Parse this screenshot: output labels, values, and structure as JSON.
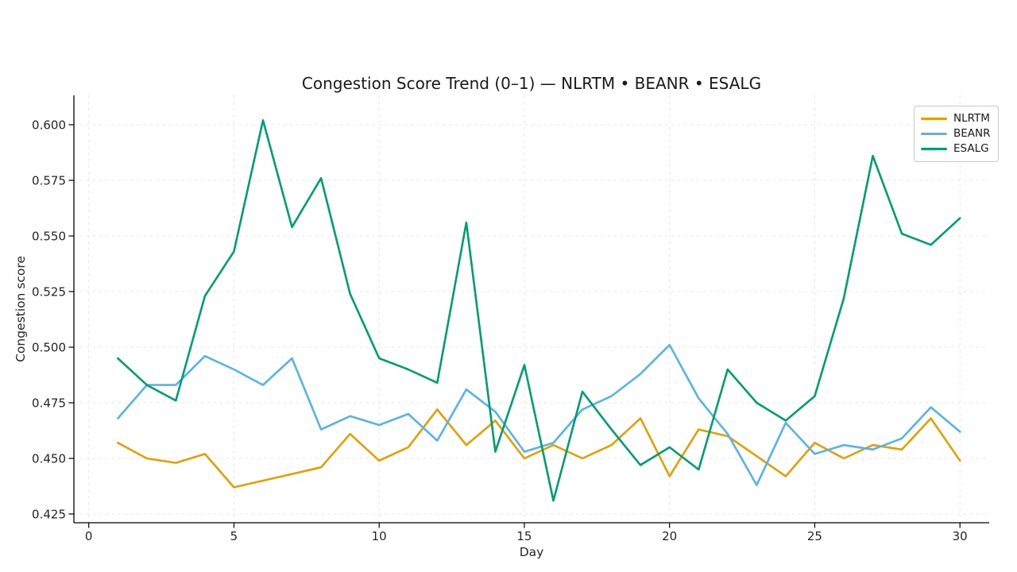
{
  "chart": {
    "title": "Congestion Score Trend (0–1) — NLRTM • BEANR • ESALG",
    "xlabel": "Day",
    "ylabel": "Congestion score"
  },
  "chart_data": {
    "type": "line",
    "title": "Congestion Score Trend (0–1) — NLRTM • BEANR • ESALG",
    "xlabel": "Day",
    "ylabel": "Congestion score",
    "grid": true,
    "legend_position": "upper right",
    "xlim": [
      -0.5,
      31.0
    ],
    "ylim": [
      0.421,
      0.613
    ],
    "x_ticks": [
      0,
      5,
      10,
      15,
      20,
      25,
      30
    ],
    "y_ticks": [
      0.425,
      0.45,
      0.475,
      0.5,
      0.525,
      0.55,
      0.575,
      0.6
    ],
    "x": [
      1,
      2,
      3,
      4,
      5,
      6,
      7,
      8,
      9,
      10,
      11,
      12,
      13,
      14,
      15,
      16,
      17,
      18,
      19,
      20,
      21,
      22,
      23,
      24,
      25,
      26,
      27,
      28,
      29,
      30
    ],
    "series": [
      {
        "name": "NLRTM",
        "color": "#E69F00",
        "values": [
          0.457,
          0.45,
          0.448,
          0.452,
          0.437,
          0.44,
          0.443,
          0.446,
          0.461,
          0.449,
          0.455,
          0.472,
          0.456,
          0.467,
          0.45,
          0.456,
          0.45,
          0.456,
          0.468,
          0.442,
          0.463,
          0.46,
          0.451,
          0.442,
          0.457,
          0.45,
          0.456,
          0.454,
          0.468,
          0.449
        ]
      },
      {
        "name": "BEANR",
        "color": "#56B4E9",
        "values": [
          0.468,
          0.483,
          0.483,
          0.496,
          0.49,
          0.483,
          0.495,
          0.463,
          0.469,
          0.465,
          0.47,
          0.458,
          0.481,
          0.471,
          0.453,
          0.457,
          0.472,
          0.478,
          0.488,
          0.501,
          0.477,
          0.461,
          0.438,
          0.466,
          0.452,
          0.456,
          0.454,
          0.459,
          0.473,
          0.462
        ]
      },
      {
        "name": "ESALG",
        "color": "#009E73",
        "values": [
          0.495,
          0.483,
          0.476,
          0.523,
          0.543,
          0.602,
          0.554,
          0.576,
          0.524,
          0.495,
          0.49,
          0.484,
          0.556,
          0.453,
          0.492,
          0.431,
          0.48,
          0.463,
          0.447,
          0.455,
          0.445,
          0.49,
          0.475,
          0.467,
          0.478,
          0.522,
          0.586,
          0.551,
          0.546,
          0.558
        ]
      }
    ]
  }
}
